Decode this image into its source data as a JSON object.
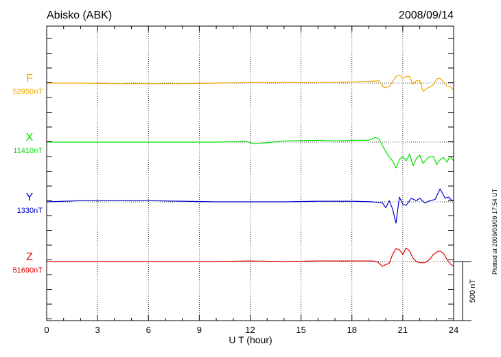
{
  "header": {
    "station": "Abisko (ABK)",
    "date": "2008/09/14"
  },
  "footer": {
    "plotted_note": "Plotted at 2009/03/09 17:54 UT"
  },
  "chart_data": {
    "type": "line",
    "xlabel": "U T (hour)",
    "xlim": [
      0,
      24
    ],
    "xticks": [
      "0",
      "3",
      "6",
      "9",
      "12",
      "15",
      "18",
      "21",
      "24"
    ],
    "grid": "vertical dotted at 3-hour ticks; dotted baseline per trace",
    "scale_bar": {
      "label": "500 nT",
      "value_nT": 500
    },
    "series": [
      {
        "name": "F",
        "baseline_label": "52950nT",
        "baseline_nT": 52950,
        "color": "#f0a800",
        "x": [
          0,
          2,
          4,
          6,
          8,
          10,
          12,
          14,
          16,
          18,
          19.2,
          19.6,
          19.9,
          20.2,
          20.4,
          20.6,
          20.8,
          21.0,
          21.2,
          21.4,
          21.6,
          21.8,
          22.0,
          22.2,
          22.5,
          22.8,
          23.0,
          23.2,
          23.4,
          23.6,
          23.8,
          24.0
        ],
        "y": [
          0,
          0,
          -5,
          -5,
          -5,
          0,
          5,
          5,
          5,
          10,
          15,
          20,
          -40,
          -30,
          10,
          55,
          70,
          40,
          55,
          55,
          -10,
          20,
          20,
          -70,
          -40,
          -15,
          35,
          40,
          10,
          -25,
          -30,
          -60
        ]
      },
      {
        "name": "X",
        "baseline_label": "11410nT",
        "baseline_nT": 11410,
        "color": "#00e000",
        "x": [
          0,
          2,
          4,
          6,
          8,
          10,
          11.8,
          12.2,
          13,
          14,
          16,
          17,
          18,
          19,
          19.4,
          19.6,
          19.8,
          20.0,
          20.2,
          20.4,
          20.6,
          20.8,
          21.0,
          21.2,
          21.4,
          21.6,
          21.8,
          22.0,
          22.2,
          22.5,
          22.8,
          23.0,
          23.2,
          23.4,
          23.6,
          23.8,
          24.0
        ],
        "y": [
          0,
          0,
          0,
          0,
          0,
          0,
          5,
          -15,
          -5,
          10,
          15,
          10,
          15,
          15,
          40,
          25,
          -30,
          -80,
          -125,
          -160,
          -220,
          -150,
          -120,
          -160,
          -100,
          -200,
          -140,
          -110,
          -180,
          -130,
          -120,
          -190,
          -150,
          -130,
          -170,
          -120,
          -160
        ]
      },
      {
        "name": "Y",
        "baseline_label": "1330nT",
        "baseline_nT": 1330,
        "color": "#0000cc",
        "x": [
          0,
          2,
          4,
          6,
          8,
          10,
          12,
          14,
          16,
          18,
          19.2,
          19.8,
          20.0,
          20.2,
          20.4,
          20.6,
          20.8,
          21.0,
          21.2,
          21.5,
          21.8,
          22.0,
          22.3,
          22.6,
          22.9,
          23.2,
          23.5,
          23.7,
          23.9,
          24.0
        ],
        "y": [
          0,
          10,
          10,
          10,
          5,
          0,
          0,
          0,
          5,
          5,
          0,
          -10,
          -50,
          10,
          -60,
          -180,
          40,
          -20,
          -30,
          30,
          10,
          30,
          -10,
          10,
          20,
          110,
          30,
          40,
          10,
          10
        ]
      },
      {
        "name": "Z",
        "baseline_label": "51690nT",
        "baseline_nT": 51690,
        "color": "#dd0000",
        "x": [
          0,
          2,
          4,
          6,
          8,
          10,
          12,
          14,
          16,
          18,
          19.2,
          19.5,
          19.8,
          20.0,
          20.2,
          20.4,
          20.6,
          20.8,
          21.0,
          21.2,
          21.4,
          21.6,
          21.8,
          22.0,
          22.3,
          22.6,
          22.8,
          23.0,
          23.2,
          23.4,
          23.6,
          23.8,
          24.0
        ],
        "y": [
          0,
          0,
          0,
          0,
          0,
          0,
          5,
          0,
          5,
          5,
          5,
          0,
          -40,
          -25,
          -15,
          60,
          110,
          100,
          60,
          115,
          90,
          30,
          0,
          -10,
          -10,
          20,
          60,
          80,
          90,
          70,
          20,
          -20,
          -40
        ]
      }
    ]
  }
}
